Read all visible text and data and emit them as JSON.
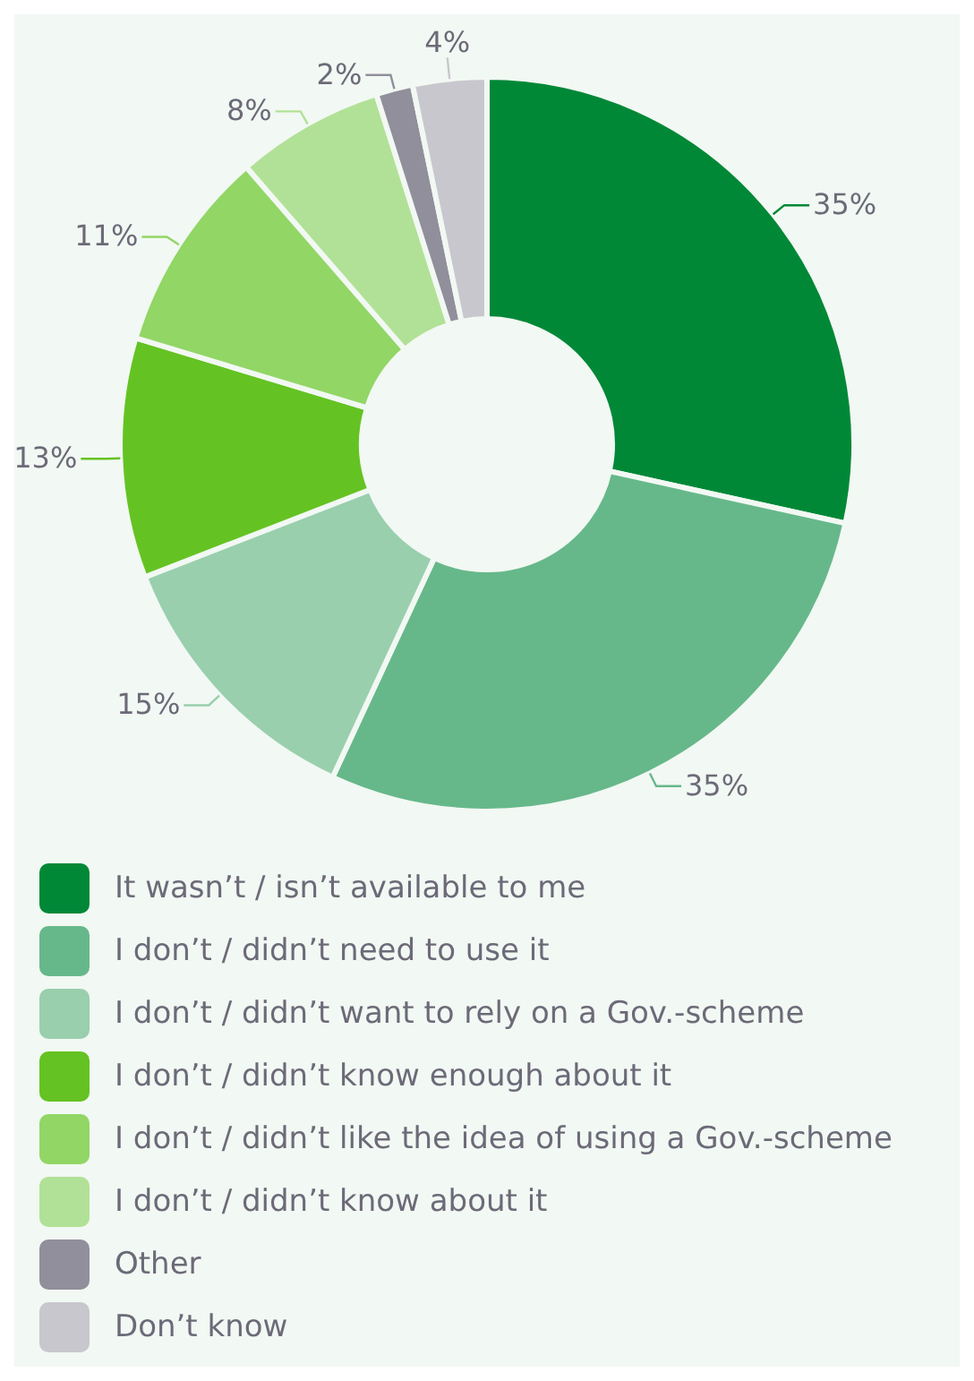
{
  "chart_data": {
    "type": "donut",
    "categories": [
      "It wasn’t / isn’t available to me",
      "I don’t / didn’t need to use it",
      "I don’t / didn’t want to rely on a Gov.-scheme",
      "I don’t / didn’t know enough about it",
      "I don’t / didn’t like the idea of using a Gov.-scheme",
      "I don’t / didn’t know about it",
      "Other",
      "Don’t know"
    ],
    "values": [
      35,
      35,
      15,
      13,
      11,
      8,
      2,
      4
    ],
    "value_labels": [
      "35%",
      "35%",
      "15%",
      "13%",
      "11%",
      "8%",
      "2%",
      "4%"
    ],
    "colors": [
      "#008837",
      "#66b88a",
      "#99cfad",
      "#64c323",
      "#92d666",
      "#b1e196",
      "#918f9b",
      "#c8c7cd"
    ],
    "legend": "bottom"
  }
}
